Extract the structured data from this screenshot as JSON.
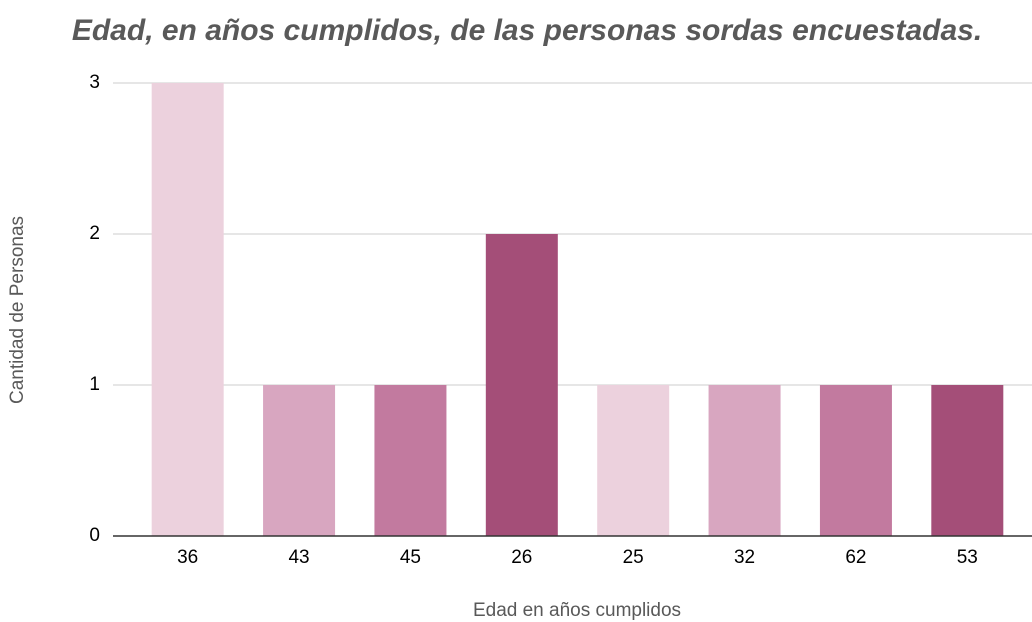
{
  "chart_data": {
    "type": "bar",
    "title": "Edad, en años cumplidos, de las personas sordas encuestadas.",
    "x_label": "Edad en años cumplidos",
    "y_label": "Cantidad de Personas",
    "categories": [
      "36",
      "43",
      "45",
      "26",
      "25",
      "32",
      "62",
      "53"
    ],
    "values": [
      3,
      1,
      1,
      2,
      1,
      1,
      1,
      1
    ],
    "colors": [
      "#ecd1dd",
      "#d8a6c0",
      "#c27a9f",
      "#a44e78",
      "#ecd1dd",
      "#d8a6c0",
      "#c27a9f",
      "#a44e78"
    ],
    "ylim": [
      0,
      3
    ],
    "yticks": [
      0,
      1,
      2,
      3
    ],
    "grid": true
  }
}
